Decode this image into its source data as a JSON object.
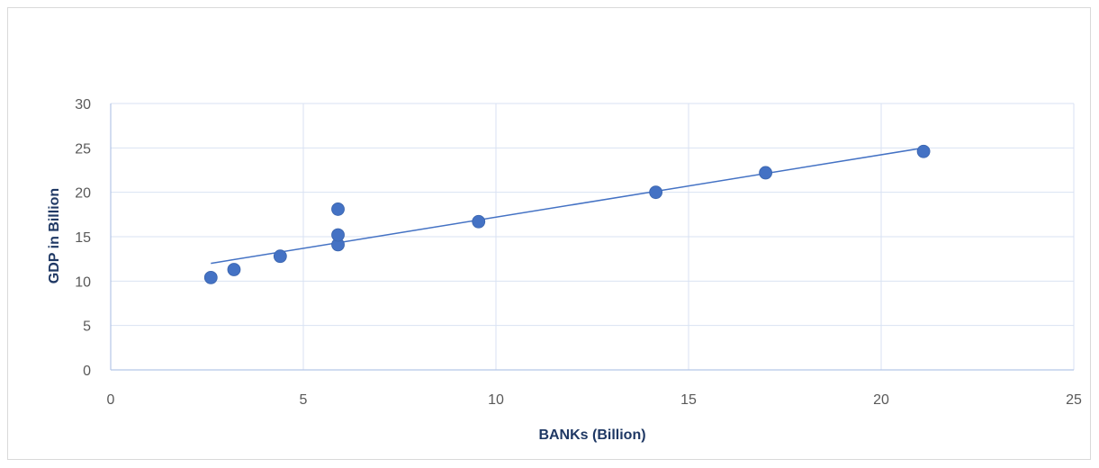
{
  "chart_data": {
    "type": "scatter",
    "title": "",
    "xlabel": "BANKs (Billion)",
    "ylabel": "GDP in Billion",
    "xlim": [
      0,
      25
    ],
    "ylim": [
      0,
      30
    ],
    "x_ticks": [
      "0",
      "5",
      "10",
      "15",
      "20",
      "25"
    ],
    "y_ticks": [
      "0",
      "5",
      "10",
      "15",
      "20",
      "25",
      "30"
    ],
    "grid": true,
    "legend": "none",
    "series": [
      {
        "x": [
          2.6,
          3.2,
          4.4,
          5.9,
          5.9,
          5.9,
          9.55,
          14.15,
          17.0,
          21.1
        ],
        "y": [
          10.4,
          11.3,
          12.8,
          14.1,
          15.2,
          18.1,
          16.7,
          20.0,
          22.2,
          24.6
        ],
        "color": "#4472c4"
      }
    ],
    "trendline": {
      "type": "linear",
      "x": [
        2.6,
        21.1
      ],
      "y": [
        12.0,
        25.0
      ],
      "color": "#4472c4"
    }
  }
}
